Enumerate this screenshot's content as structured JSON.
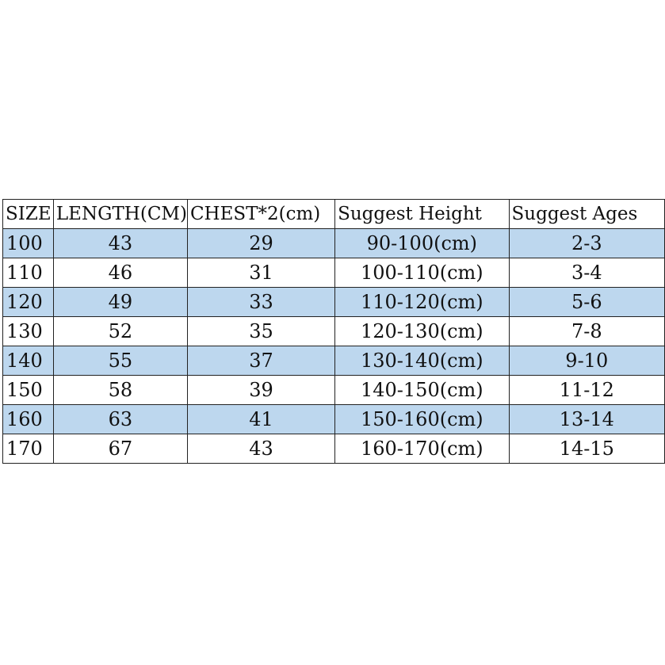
{
  "table": {
    "headers": [
      "SIZE",
      "LENGTH(CM)",
      "CHEST*2(cm)",
      "Suggest Height",
      "Suggest Ages"
    ],
    "row_fill_color": "#bdd7ee",
    "rows": [
      [
        "100",
        "43",
        "29",
        "90-100(cm)",
        "2-3"
      ],
      [
        "110",
        "46",
        "31",
        "100-110(cm)",
        "3-4"
      ],
      [
        "120",
        "49",
        "33",
        "110-120(cm)",
        "5-6"
      ],
      [
        "130",
        "52",
        "35",
        "120-130(cm)",
        "7-8"
      ],
      [
        "140",
        "55",
        "37",
        "130-140(cm)",
        "9-10"
      ],
      [
        "150",
        "58",
        "39",
        "140-150(cm)",
        "11-12"
      ],
      [
        "160",
        "63",
        "41",
        "150-160(cm)",
        "13-14"
      ],
      [
        "170",
        "67",
        "43",
        "160-170(cm)",
        "14-15"
      ]
    ]
  }
}
